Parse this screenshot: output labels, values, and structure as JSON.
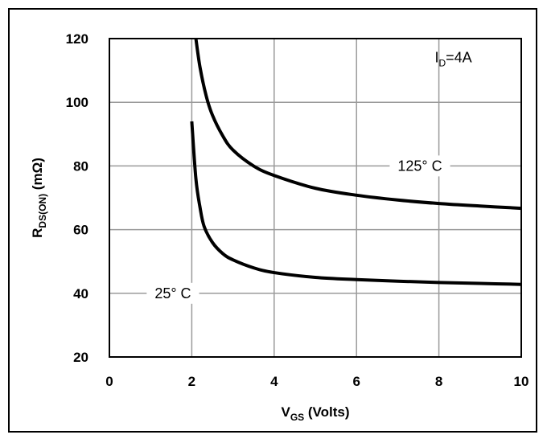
{
  "chart_data": {
    "type": "line",
    "title": "",
    "xlabel": {
      "main": "V",
      "sub": "GS",
      "rest": " (Volts)"
    },
    "ylabel": {
      "main": "R",
      "sub": "DS(ON)",
      "rest": " (mΩ)"
    },
    "xlim": [
      0,
      10
    ],
    "ylim": [
      20,
      120
    ],
    "xticks": [
      0,
      2,
      4,
      6,
      8,
      10
    ],
    "yticks": [
      20,
      40,
      60,
      80,
      100,
      120
    ],
    "x_tick_labels": [
      "0",
      "2",
      "4",
      "6",
      "8",
      "10"
    ],
    "y_tick_labels": [
      "20",
      "40",
      "60",
      "80",
      "100",
      "120"
    ],
    "grid": true,
    "condition": {
      "main": "I",
      "sub": "D",
      "rest": "=4A"
    },
    "series": [
      {
        "name": "25° C",
        "label_text": "25°  C",
        "x": [
          2.0,
          2.1,
          2.2,
          2.3,
          2.5,
          2.75,
          3.0,
          3.5,
          4.0,
          5.0,
          6.0,
          7.0,
          8.0,
          9.0,
          10.0
        ],
        "y": [
          94,
          76,
          67,
          61,
          56,
          52.5,
          50.5,
          48,
          46.5,
          45,
          44.3,
          43.8,
          43.4,
          43.1,
          42.8
        ]
      },
      {
        "name": "125° C",
        "label_text": "125°  C",
        "x": [
          2.1,
          2.2,
          2.35,
          2.5,
          2.75,
          3.0,
          3.5,
          4.0,
          5.0,
          6.0,
          7.0,
          8.0,
          9.0,
          10.0
        ],
        "y": [
          120,
          111,
          102,
          96,
          89.5,
          85,
          80,
          77,
          73,
          70.8,
          69.3,
          68.2,
          67.4,
          66.7
        ]
      }
    ]
  }
}
